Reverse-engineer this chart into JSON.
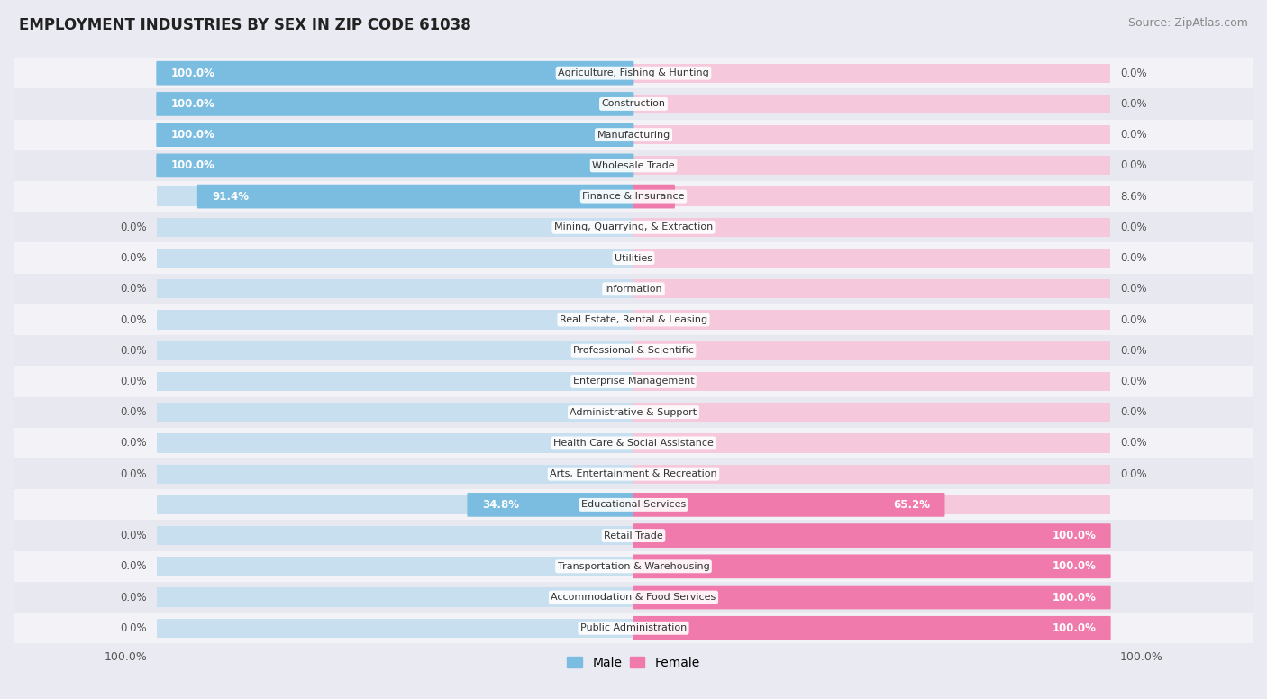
{
  "title": "EMPLOYMENT INDUSTRIES BY SEX IN ZIP CODE 61038",
  "source": "Source: ZipAtlas.com",
  "categories": [
    "Agriculture, Fishing & Hunting",
    "Construction",
    "Manufacturing",
    "Wholesale Trade",
    "Finance & Insurance",
    "Mining, Quarrying, & Extraction",
    "Utilities",
    "Information",
    "Real Estate, Rental & Leasing",
    "Professional & Scientific",
    "Enterprise Management",
    "Administrative & Support",
    "Health Care & Social Assistance",
    "Arts, Entertainment & Recreation",
    "Educational Services",
    "Retail Trade",
    "Transportation & Warehousing",
    "Accommodation & Food Services",
    "Public Administration"
  ],
  "male": [
    100.0,
    100.0,
    100.0,
    100.0,
    91.4,
    0.0,
    0.0,
    0.0,
    0.0,
    0.0,
    0.0,
    0.0,
    0.0,
    0.0,
    34.8,
    0.0,
    0.0,
    0.0,
    0.0
  ],
  "female": [
    0.0,
    0.0,
    0.0,
    0.0,
    8.6,
    0.0,
    0.0,
    0.0,
    0.0,
    0.0,
    0.0,
    0.0,
    0.0,
    0.0,
    65.2,
    100.0,
    100.0,
    100.0,
    100.0
  ],
  "male_color": "#7abde0",
  "female_color": "#f07aab",
  "male_bg_color": "#c8dff0",
  "female_bg_color": "#f5c8dc",
  "row_bg_colors": [
    "#f2f2f7",
    "#e8e8f0"
  ],
  "outer_bg": "#eaeaf2",
  "title_color": "#222222",
  "source_color": "#888888",
  "label_fontsize": 8.5,
  "cat_fontsize": 8.0,
  "figsize": [
    14.06,
    7.76
  ],
  "dpi": 100
}
